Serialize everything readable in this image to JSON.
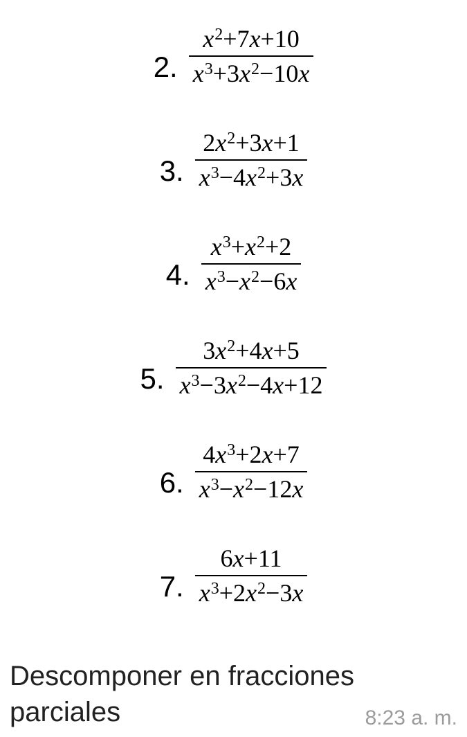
{
  "problems": [
    {
      "num": "2.",
      "numerator": [
        {
          "t": "var",
          "v": "x"
        },
        {
          "t": "sup",
          "v": "2"
        },
        {
          "t": "op",
          "v": "+"
        },
        {
          "t": "num",
          "v": "7"
        },
        {
          "t": "var",
          "v": "x"
        },
        {
          "t": "op",
          "v": "+"
        },
        {
          "t": "num",
          "v": "10"
        }
      ],
      "denominator": [
        {
          "t": "var",
          "v": "x"
        },
        {
          "t": "sup",
          "v": "3"
        },
        {
          "t": "op",
          "v": "+"
        },
        {
          "t": "num",
          "v": "3"
        },
        {
          "t": "var",
          "v": "x"
        },
        {
          "t": "sup",
          "v": "2"
        },
        {
          "t": "op",
          "v": "−"
        },
        {
          "t": "num",
          "v": "10"
        },
        {
          "t": "var",
          "v": "x"
        }
      ]
    },
    {
      "num": "3.",
      "numerator": [
        {
          "t": "num",
          "v": "2"
        },
        {
          "t": "var",
          "v": "x"
        },
        {
          "t": "sup",
          "v": "2"
        },
        {
          "t": "op",
          "v": "+"
        },
        {
          "t": "num",
          "v": "3"
        },
        {
          "t": "var",
          "v": "x"
        },
        {
          "t": "op",
          "v": "+"
        },
        {
          "t": "num",
          "v": "1"
        }
      ],
      "denominator": [
        {
          "t": "var",
          "v": "x"
        },
        {
          "t": "sup",
          "v": "3"
        },
        {
          "t": "op",
          "v": "−"
        },
        {
          "t": "num",
          "v": "4"
        },
        {
          "t": "var",
          "v": "x"
        },
        {
          "t": "sup",
          "v": "2"
        },
        {
          "t": "op",
          "v": "+"
        },
        {
          "t": "num",
          "v": "3"
        },
        {
          "t": "var",
          "v": "x"
        }
      ]
    },
    {
      "num": "4.",
      "numerator": [
        {
          "t": "var",
          "v": "x"
        },
        {
          "t": "sup",
          "v": "3"
        },
        {
          "t": "op",
          "v": "+"
        },
        {
          "t": "var",
          "v": "x"
        },
        {
          "t": "sup",
          "v": "2"
        },
        {
          "t": "op",
          "v": "+"
        },
        {
          "t": "num",
          "v": "2"
        }
      ],
      "denominator": [
        {
          "t": "var",
          "v": "x"
        },
        {
          "t": "sup",
          "v": "3"
        },
        {
          "t": "op",
          "v": "−"
        },
        {
          "t": "var",
          "v": "x"
        },
        {
          "t": "sup",
          "v": "2"
        },
        {
          "t": "op",
          "v": "−"
        },
        {
          "t": "num",
          "v": "6"
        },
        {
          "t": "var",
          "v": "x"
        }
      ]
    },
    {
      "num": "5.",
      "numerator": [
        {
          "t": "num",
          "v": "3"
        },
        {
          "t": "var",
          "v": "x"
        },
        {
          "t": "sup",
          "v": "2"
        },
        {
          "t": "op",
          "v": "+"
        },
        {
          "t": "num",
          "v": "4"
        },
        {
          "t": "var",
          "v": "x"
        },
        {
          "t": "op",
          "v": "+"
        },
        {
          "t": "num",
          "v": "5"
        }
      ],
      "denominator": [
        {
          "t": "var",
          "v": "x"
        },
        {
          "t": "sup",
          "v": "3"
        },
        {
          "t": "op",
          "v": "−"
        },
        {
          "t": "num",
          "v": "3"
        },
        {
          "t": "var",
          "v": "x"
        },
        {
          "t": "sup",
          "v": "2"
        },
        {
          "t": "op",
          "v": "−"
        },
        {
          "t": "num",
          "v": "4"
        },
        {
          "t": "var",
          "v": "x"
        },
        {
          "t": "op",
          "v": "+"
        },
        {
          "t": "num",
          "v": "12"
        }
      ]
    },
    {
      "num": "6.",
      "numerator": [
        {
          "t": "num",
          "v": "4"
        },
        {
          "t": "var",
          "v": "x"
        },
        {
          "t": "sup",
          "v": "3"
        },
        {
          "t": "op",
          "v": "+"
        },
        {
          "t": "num",
          "v": "2"
        },
        {
          "t": "var",
          "v": "x"
        },
        {
          "t": "op",
          "v": "+"
        },
        {
          "t": "num",
          "v": "7"
        }
      ],
      "denominator": [
        {
          "t": "var",
          "v": "x"
        },
        {
          "t": "sup",
          "v": "3"
        },
        {
          "t": "op",
          "v": "−"
        },
        {
          "t": "var",
          "v": "x"
        },
        {
          "t": "sup",
          "v": "2"
        },
        {
          "t": "op",
          "v": "−"
        },
        {
          "t": "num",
          "v": "12"
        },
        {
          "t": "var",
          "v": "x"
        }
      ]
    },
    {
      "num": "7.",
      "numerator": [
        {
          "t": "num",
          "v": "6"
        },
        {
          "t": "var",
          "v": "x"
        },
        {
          "t": "op",
          "v": "+"
        },
        {
          "t": "num",
          "v": "11"
        }
      ],
      "denominator": [
        {
          "t": "var",
          "v": "x"
        },
        {
          "t": "sup",
          "v": "3"
        },
        {
          "t": "op",
          "v": "+"
        },
        {
          "t": "num",
          "v": "2"
        },
        {
          "t": "var",
          "v": "x"
        },
        {
          "t": "sup",
          "v": "2"
        },
        {
          "t": "op",
          "v": "−"
        },
        {
          "t": "num",
          "v": "3"
        },
        {
          "t": "var",
          "v": "x"
        }
      ]
    }
  ],
  "instruction_line1": "Descomponer en fracciones",
  "instruction_line2": "parciales",
  "timestamp": "8:23 a. m.",
  "colors": {
    "background": "#ffffff",
    "text": "#000000",
    "instruction_text": "#222222",
    "timestamp_text": "#9b9b9b"
  },
  "fonts": {
    "math_family": "Times New Roman, serif",
    "ui_family": "Arial, sans-serif",
    "problem_num_size": 42,
    "fraction_size": 36,
    "sup_size": 24,
    "instruction_size": 40,
    "timestamp_size": 30
  }
}
